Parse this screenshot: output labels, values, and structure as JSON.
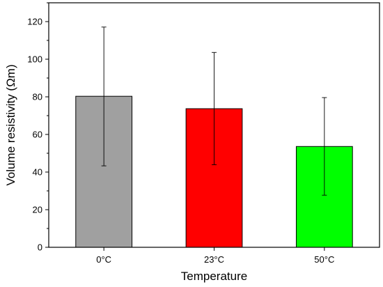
{
  "chart_data": {
    "type": "bar",
    "title": "",
    "xlabel": "Temperature",
    "ylabel": "Volume resistivity (Ωm)",
    "categories": [
      "0°C",
      "23°C",
      "50°C"
    ],
    "values": [
      80.3,
      73.7,
      53.6
    ],
    "errors": [
      {
        "low": 43.3,
        "high": 117.1
      },
      {
        "low": 43.9,
        "high": 103.6
      },
      {
        "low": 27.7,
        "high": 79.6
      }
    ],
    "colors": [
      "#a0a0a0",
      "#ff0000",
      "#00ff00"
    ],
    "ylim": [
      0,
      130
    ],
    "yticks": [
      0,
      20,
      40,
      60,
      80,
      100,
      120
    ],
    "grid": false,
    "legend": "none"
  }
}
